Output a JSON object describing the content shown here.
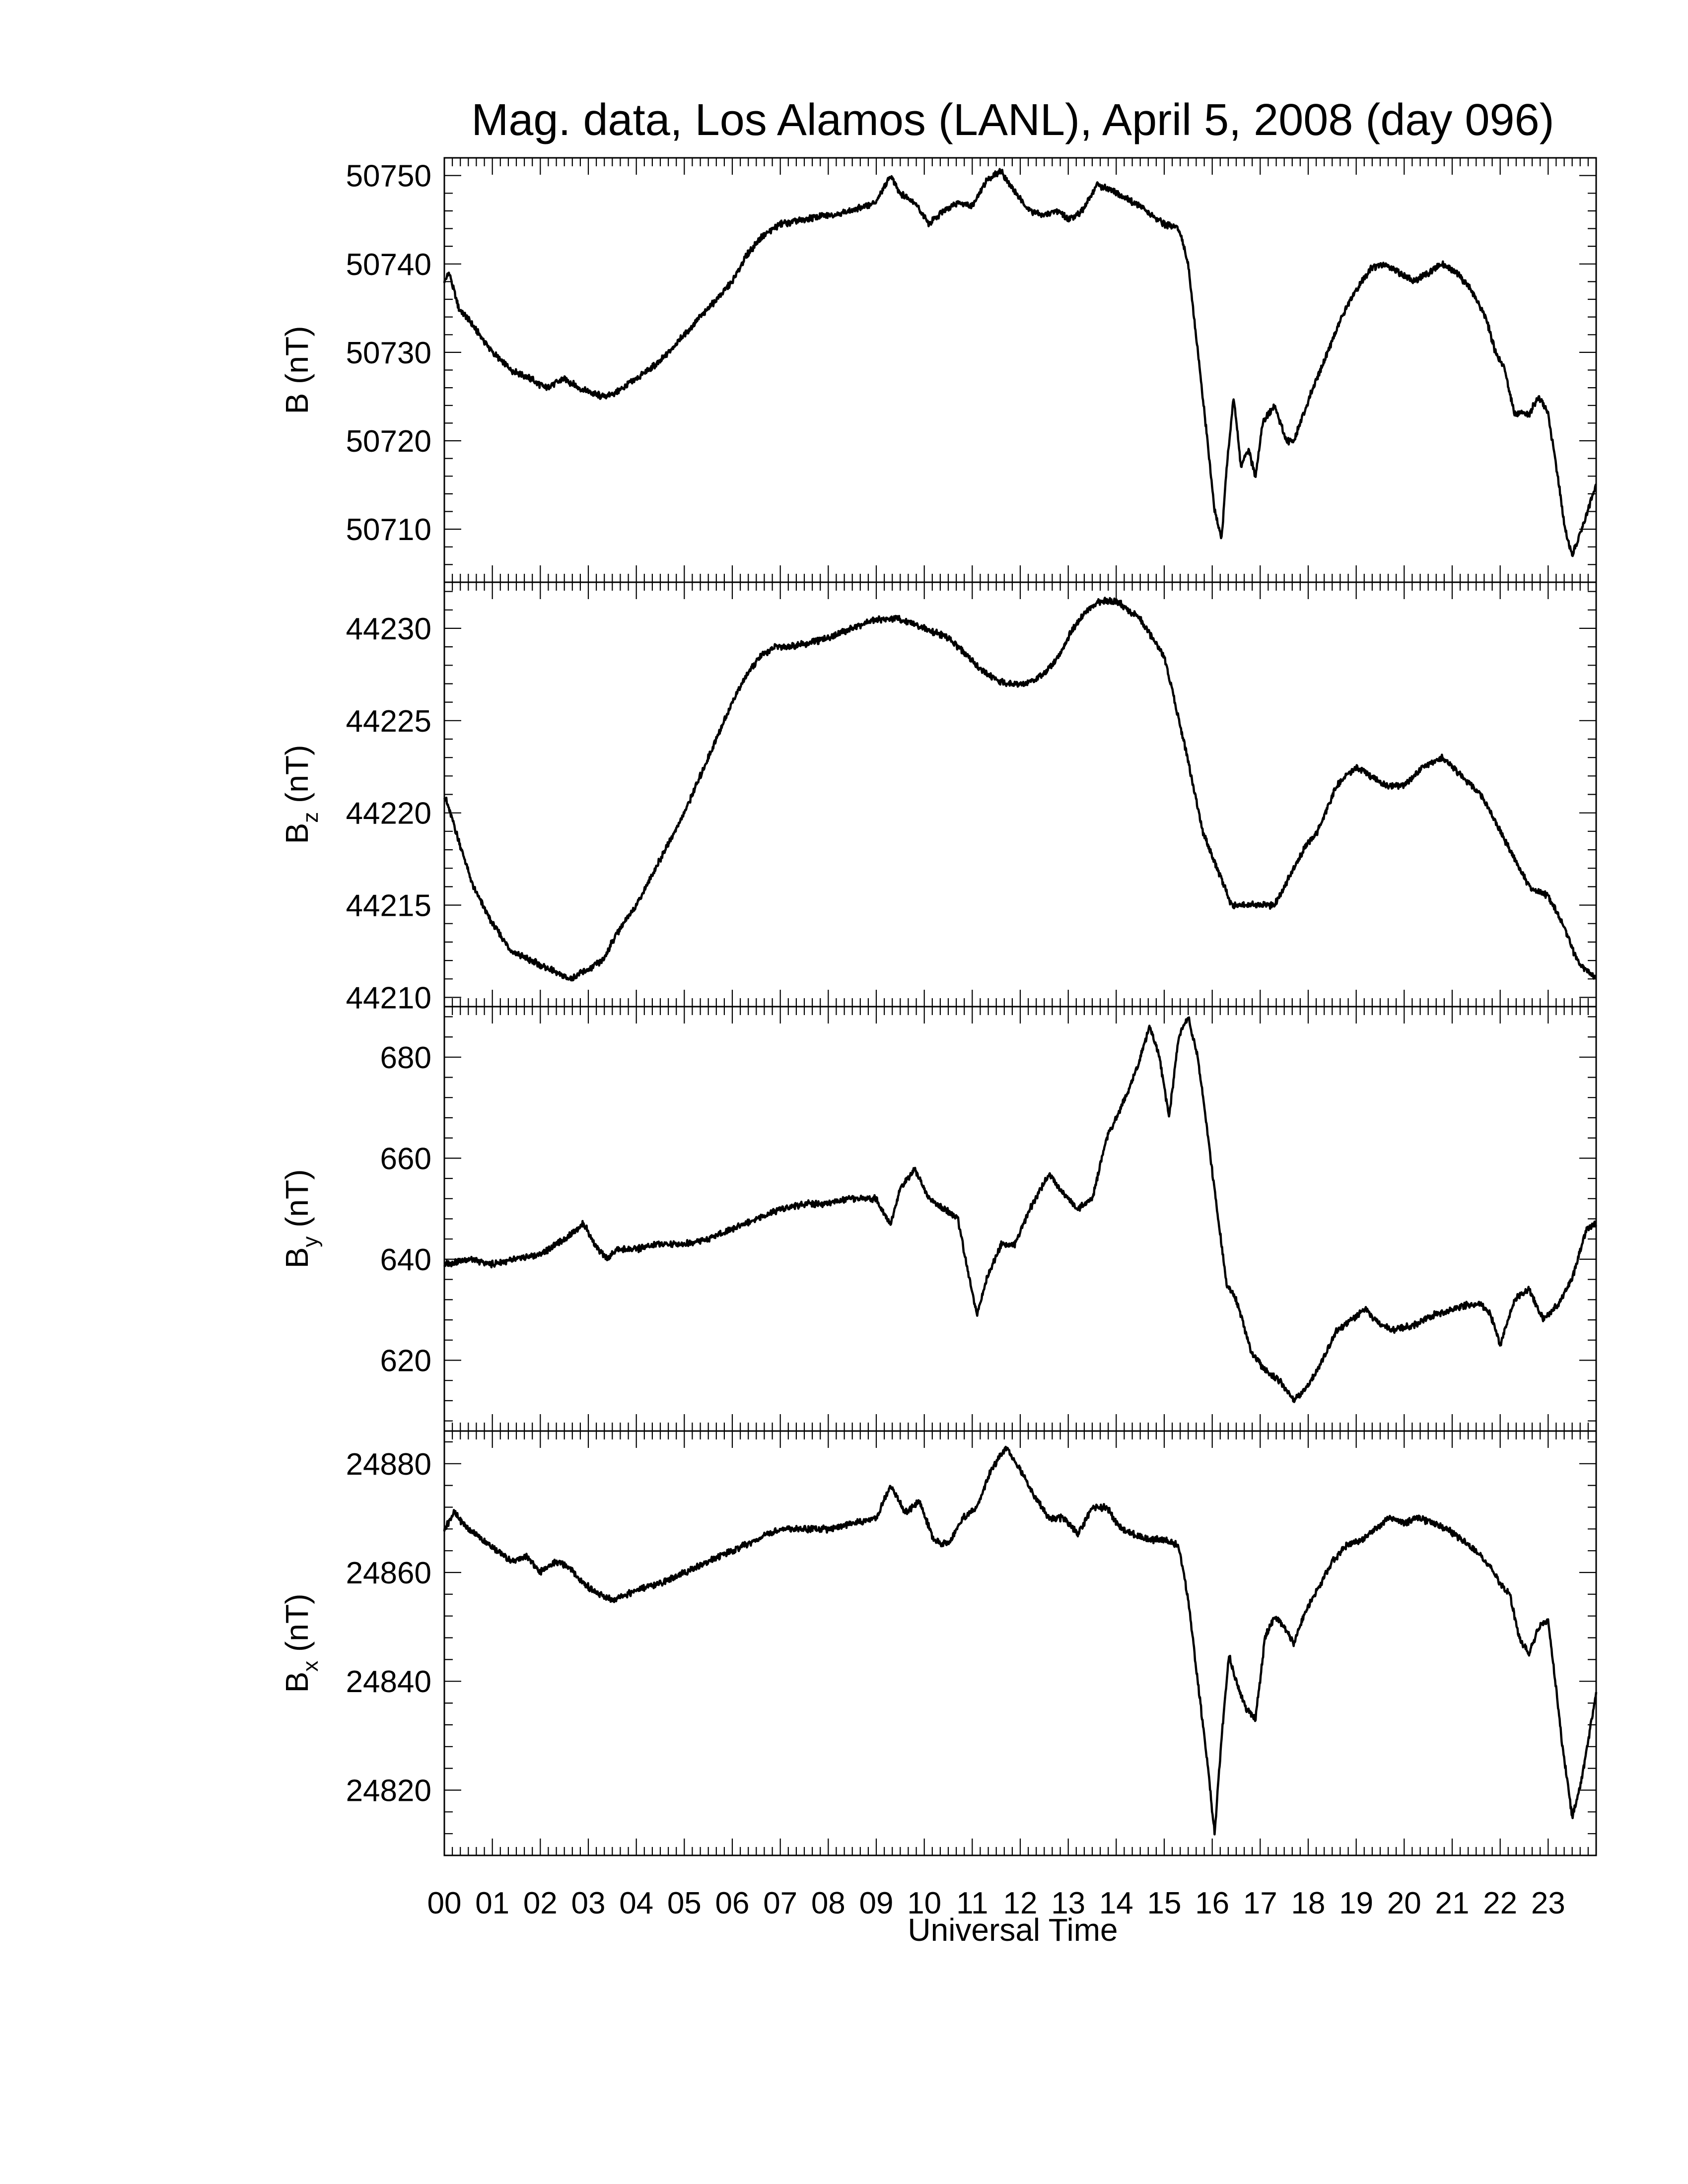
{
  "figure": {
    "title": "Mag. data, Los Alamos (LANL), April 5, 2008 (day 096)",
    "xlabel": "Universal Time",
    "line_color": "#000000",
    "background": "#ffffff"
  },
  "chart_data": [
    {
      "type": "line",
      "panel": "B",
      "ylabel": "B (nT)",
      "ylabel_main": "B",
      "ylabel_sub": "",
      "ylabel_unit": "(nT)",
      "xlim": [
        0,
        24
      ],
      "ylim": [
        50704,
        50752
      ],
      "yticks": [
        50710,
        50720,
        50730,
        50740,
        50750
      ],
      "x_hours": [
        0,
        0.1,
        0.3,
        0.6,
        1.0,
        1.4,
        1.8,
        2.1,
        2.5,
        2.8,
        3.0,
        3.3,
        3.6,
        4.0,
        4.5,
        5.0,
        5.5,
        6.0,
        6.3,
        6.6,
        7.0,
        7.5,
        8.0,
        8.5,
        9.0,
        9.3,
        9.5,
        9.8,
        10.1,
        10.4,
        10.7,
        11.0,
        11.3,
        11.6,
        11.9,
        12.2,
        12.5,
        12.8,
        13.0,
        13.3,
        13.6,
        14.0,
        14.5,
        15.0,
        15.3,
        15.5,
        15.7,
        15.9,
        16.05,
        16.2,
        16.3,
        16.45,
        16.6,
        16.75,
        16.9,
        17.05,
        17.3,
        17.55,
        17.7,
        17.9,
        18.1,
        18.4,
        18.7,
        19.0,
        19.3,
        19.6,
        19.9,
        20.2,
        20.5,
        20.8,
        21.1,
        21.4,
        21.7,
        21.9,
        22.1,
        22.3,
        22.6,
        22.8,
        23.0,
        23.2,
        23.35,
        23.5,
        23.7,
        24.0
      ],
      "values": [
        50738,
        50739,
        50735,
        50733,
        50730,
        50728,
        50727,
        50726,
        50727,
        50726,
        50725.5,
        50725,
        50725.5,
        50727,
        50729,
        50732,
        50735,
        50738,
        50741,
        50743,
        50744.5,
        50745,
        50745.5,
        50746,
        50747,
        50750,
        50748,
        50747,
        50744.5,
        50746,
        50747,
        50746.5,
        50749.5,
        50750.5,
        50748,
        50746,
        50745.5,
        50746,
        50745,
        50746,
        50749,
        50748,
        50746.5,
        50744.5,
        50744,
        50740,
        50730,
        50720,
        50712,
        50709,
        50717,
        50725,
        50717,
        50719,
        50716,
        50722,
        50724,
        50720,
        50720,
        50723,
        50726,
        50730,
        50734,
        50737,
        50739.5,
        50740,
        50739,
        50738,
        50739,
        50740,
        50739,
        50737,
        50734,
        50730,
        50728,
        50723,
        50723,
        50725,
        50723,
        50716,
        50710,
        50707,
        50710,
        50715
      ]
    },
    {
      "type": "line",
      "panel": "Bz",
      "ylabel": "Bz (nT)",
      "ylabel_main": "B",
      "ylabel_sub": "z",
      "ylabel_unit": "(nT)",
      "xlim": [
        0,
        24
      ],
      "ylim": [
        44209.5,
        44232.5
      ],
      "yticks": [
        44210,
        44215,
        44220,
        44225,
        44230
      ],
      "x_hours": [
        0,
        0.3,
        0.6,
        1.0,
        1.4,
        1.8,
        2.2,
        2.6,
        3.0,
        3.3,
        3.6,
        4.0,
        4.5,
        5.0,
        5.5,
        6.0,
        6.3,
        6.6,
        6.9,
        7.2,
        7.6,
        8.0,
        8.5,
        9.0,
        9.5,
        10.0,
        10.5,
        10.9,
        11.3,
        11.7,
        12.1,
        12.5,
        12.8,
        13.1,
        13.4,
        13.7,
        14.0,
        14.5,
        15.0,
        15.4,
        15.8,
        16.1,
        16.4,
        16.7,
        17.0,
        17.3,
        17.6,
        17.9,
        18.2,
        18.6,
        19.0,
        19.3,
        19.6,
        20.0,
        20.4,
        20.8,
        21.2,
        21.6,
        21.9,
        22.2,
        22.6,
        23.0,
        23.3,
        23.6,
        24.0
      ],
      "values": [
        44221,
        44218.5,
        44216,
        44214,
        44212.5,
        44212,
        44211.5,
        44211,
        44211.5,
        44212,
        44213.5,
        44215,
        44217.5,
        44220,
        44223,
        44226,
        44227.5,
        44228.5,
        44229,
        44229,
        44229.2,
        44229.5,
        44230,
        44230.5,
        44230.5,
        44230,
        44229.5,
        44228.5,
        44227.5,
        44227,
        44227,
        44227.5,
        44228.5,
        44230,
        44231,
        44231.5,
        44231.5,
        44230.5,
        44228.5,
        44224,
        44219,
        44217,
        44215,
        44215,
        44215,
        44215,
        44216.5,
        44218,
        44219,
        44221.5,
        44222.5,
        44222,
        44221.5,
        44221.5,
        44222.5,
        44223,
        44222,
        44221,
        44219.5,
        44218,
        44216,
        44215.5,
        44214,
        44212,
        44211
      ]
    },
    {
      "type": "line",
      "panel": "By",
      "ylabel": "By (nT)",
      "ylabel_main": "B",
      "ylabel_sub": "y",
      "ylabel_unit": "(nT)",
      "xlim": [
        0,
        24
      ],
      "ylim": [
        606,
        690
      ],
      "yticks": [
        620,
        640,
        660,
        680
      ],
      "x_hours": [
        0,
        0.5,
        1.0,
        1.5,
        2.0,
        2.5,
        2.9,
        3.2,
        3.4,
        3.6,
        4.0,
        4.5,
        5.0,
        5.5,
        6.0,
        6.5,
        7.0,
        7.5,
        8.0,
        8.5,
        9.0,
        9.3,
        9.5,
        9.8,
        10.1,
        10.4,
        10.7,
        10.9,
        11.1,
        11.3,
        11.6,
        11.9,
        12.2,
        12.6,
        12.9,
        13.2,
        13.5,
        13.8,
        14.1,
        14.4,
        14.7,
        14.9,
        15.1,
        15.3,
        15.5,
        15.7,
        15.9,
        16.1,
        16.3,
        16.5,
        16.8,
        17.1,
        17.4,
        17.7,
        18.0,
        18.3,
        18.6,
        18.9,
        19.2,
        19.5,
        19.8,
        20.2,
        20.6,
        21.0,
        21.3,
        21.6,
        21.8,
        22.0,
        22.3,
        22.6,
        22.9,
        23.2,
        23.5,
        23.8,
        24.0
      ],
      "values": [
        639,
        640,
        639,
        640,
        641,
        644,
        647,
        642,
        640,
        642,
        642,
        643,
        643,
        644,
        646,
        648,
        650,
        651,
        651,
        652,
        652,
        647,
        654,
        658,
        652,
        650,
        648,
        638,
        629,
        636,
        643,
        643,
        650,
        657,
        653,
        650,
        652,
        664,
        670,
        677,
        686,
        680,
        668,
        684,
        688,
        680,
        665,
        650,
        635,
        632,
        622,
        618,
        616,
        612,
        615,
        620,
        626,
        628,
        630,
        627,
        626,
        627,
        629,
        630,
        631,
        631,
        629,
        623,
        632,
        634,
        628,
        631,
        636,
        646,
        647
      ]
    },
    {
      "type": "line",
      "panel": "Bx",
      "ylabel": "Bx (nT)",
      "ylabel_main": "B",
      "ylabel_sub": "x",
      "ylabel_unit": "(nT)",
      "xlim": [
        0,
        24
      ],
      "ylim": [
        24808,
        24886
      ],
      "yticks": [
        24820,
        24840,
        24860,
        24880
      ],
      "x_hours": [
        0,
        0.2,
        0.5,
        0.8,
        1.1,
        1.4,
        1.7,
        2.0,
        2.3,
        2.6,
        2.9,
        3.2,
        3.5,
        3.8,
        4.1,
        4.5,
        5.0,
        5.5,
        6.0,
        6.5,
        7.0,
        7.5,
        8.0,
        8.5,
        9.0,
        9.3,
        9.6,
        9.9,
        10.2,
        10.5,
        10.8,
        11.1,
        11.4,
        11.7,
        12.0,
        12.3,
        12.6,
        12.9,
        13.2,
        13.5,
        13.8,
        14.1,
        14.4,
        14.7,
        15.0,
        15.3,
        15.5,
        15.7,
        15.9,
        16.05,
        16.2,
        16.35,
        16.5,
        16.7,
        16.9,
        17.1,
        17.3,
        17.5,
        17.7,
        17.9,
        18.2,
        18.5,
        18.8,
        19.1,
        19.4,
        19.7,
        20.0,
        20.3,
        20.6,
        20.9,
        21.2,
        21.5,
        21.8,
        22.0,
        22.2,
        22.4,
        22.6,
        22.8,
        23.0,
        23.15,
        23.3,
        23.5,
        23.7,
        24.0
      ],
      "values": [
        24868,
        24871,
        24868,
        24866,
        24864,
        24862,
        24863,
        24860,
        24862,
        24861,
        24858,
        24856,
        24855,
        24856,
        24857,
        24858,
        24860,
        24862,
        24864,
        24866,
        24868,
        24868,
        24868,
        24869,
        24870,
        24876,
        24871,
        24873,
        24866,
        24865,
        24870,
        24872,
        24879,
        24883,
        24879,
        24874,
        24870,
        24870,
        24867,
        24872,
        24872,
        24868,
        24867,
        24866,
        24866,
        24865,
        24855,
        24840,
        24825,
        24812,
        24830,
        24845,
        24840,
        24835,
        24833,
        24848,
        24852,
        24850,
        24847,
        24852,
        24857,
        24862,
        24865,
        24866,
        24868,
        24870,
        24869,
        24870,
        24869,
        24868,
        24866,
        24864,
        24861,
        24858,
        24856,
        24848,
        24845,
        24850,
        24851,
        24840,
        24828,
        24815,
        24822,
        24838
      ]
    }
  ],
  "xaxis": {
    "tick_labels": [
      "00",
      "01",
      "02",
      "03",
      "04",
      "05",
      "06",
      "07",
      "08",
      "09",
      "10",
      "11",
      "12",
      "13",
      "14",
      "15",
      "16",
      "17",
      "18",
      "19",
      "20",
      "21",
      "22",
      "23"
    ]
  }
}
